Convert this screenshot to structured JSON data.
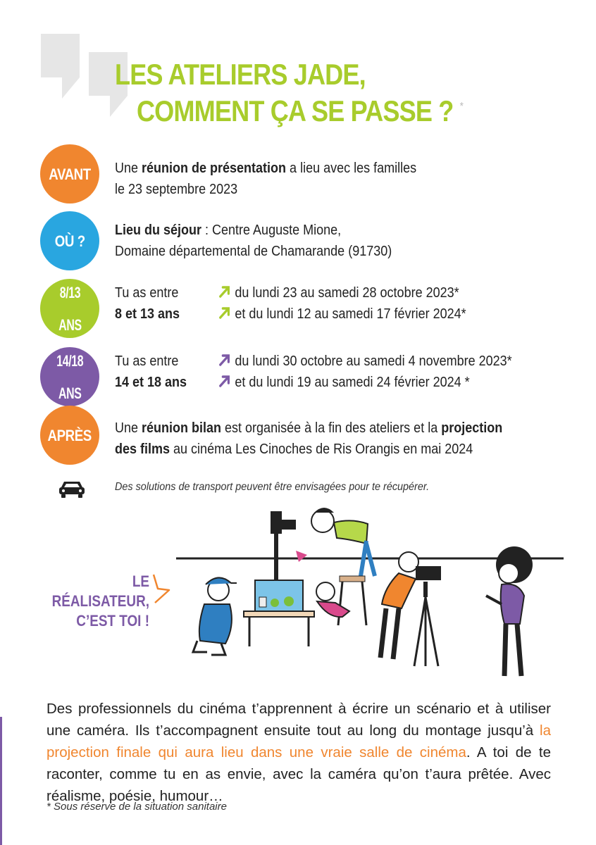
{
  "title": {
    "line1": "LES ATELIERS JADE,",
    "line2": "COMMENT ÇA SE PASSE ?",
    "asterisk": "*"
  },
  "colors": {
    "orange": "#f0862f",
    "blue": "#29a6e0",
    "green": "#a8cc2c",
    "purple": "#7d5aa6"
  },
  "rows": {
    "avant": {
      "badge": "AVANT",
      "text_pre": "Une ",
      "text_bold": "réunion de présentation",
      "text_post": " a lieu avec les familles",
      "text_line2": "le 23 septembre 2023"
    },
    "ou": {
      "badge": "OÙ ?",
      "label": "Lieu du séjour",
      "line1_rest": " : Centre Auguste Mione,",
      "line2": "Domaine départemental de Chamarande (91730)"
    },
    "age1": {
      "badge_line1": "8/13",
      "badge_line2": "ANS",
      "left_line1": "Tu as entre",
      "left_line2": "8 et 13 ans",
      "date1": "du lundi 23 au samedi 28 octobre 2023*",
      "date2": "et du lundi 12 au samedi 17 février 2024*"
    },
    "age2": {
      "badge_line1": "14/18",
      "badge_line2": "ANS",
      "left_line1": "Tu as entre",
      "left_line2": "14 et 18 ans",
      "date1": "du lundi 30 octobre au samedi 4 novembre 2023*",
      "date2": "et  du lundi 19 au samedi 24 février 2024 *"
    },
    "apres": {
      "badge": "APRÈS",
      "pre": "Une ",
      "bold1": "réunion bilan",
      "mid": " est organisée à la fin des ateliers et la ",
      "bold2": "projection",
      "bold3": "des films",
      "post": " au cinéma Les Cinoches de Ris Orangis en mai 2024"
    }
  },
  "transport": "Des solutions de transport peuvent être envisagées pour te récupérer.",
  "slogan": {
    "line1": "LE RÉALISATEUR,",
    "line2": "C’EST TOI !"
  },
  "description": {
    "pre": "Des professionnels du cinéma t’apprennent à écrire un scénario et à utiliser une caméra. Ils t’accompagnent ensuite tout au long du montage jusqu’à ",
    "highlight": "la projection finale qui aura lieu dans une vraie salle de cinéma",
    "post": ". A toi de te raconter, comme tu en as envie, avec la caméra qu’on t’aura prêtée. Avec réalisme, poésie, humour…"
  },
  "footnote": "* Sous réserve de la situation sanitaire"
}
